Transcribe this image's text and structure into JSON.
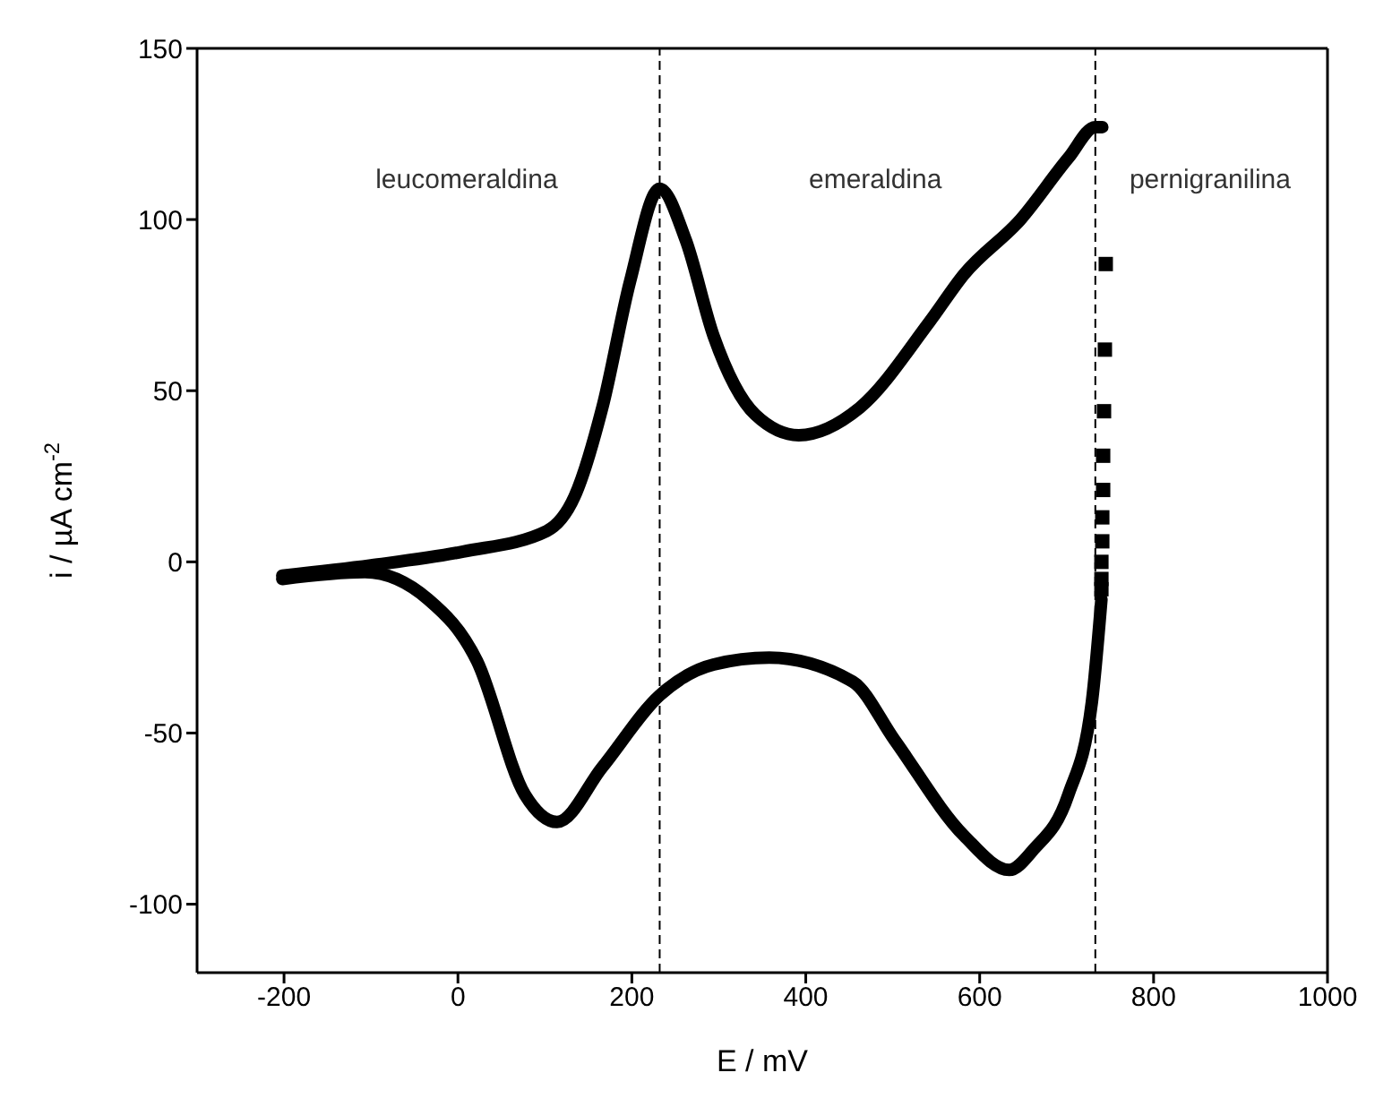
{
  "chart_data": {
    "type": "line",
    "xlabel": "E / mV",
    "ylabel": "i / µA cm$^{-2}$",
    "xlim": [
      -300,
      1000
    ],
    "xticks": [
      -200,
      0,
      200,
      400,
      600,
      800,
      1000
    ],
    "ylim": [
      -120,
      150
    ],
    "yticks": [
      -100,
      -50,
      0,
      50,
      100,
      150
    ],
    "line_style": "solid",
    "series": [
      {
        "color": "#000000",
        "marker": "none",
        "x": [
          -202,
          -100,
          6,
          102,
          134,
          166,
          198,
          232,
          262,
          294,
          342,
          392,
          462,
          542,
          582,
          647,
          702,
          733,
          741
        ],
        "values": [
          -4,
          -1,
          3,
          9,
          19,
          45,
          82,
          109,
          94,
          66,
          43,
          37,
          45,
          70,
          84,
          100,
          118,
          127,
          127
        ]
      },
      {
        "type": "scatter",
        "color": "#000000",
        "marker": "square",
        "x": [
          745,
          744,
          743,
          742,
          742,
          741,
          741,
          740,
          740,
          740
        ],
        "values": [
          87,
          62,
          44,
          31,
          21,
          13,
          6,
          0,
          -5,
          -8
        ]
      },
      {
        "color": "#000000",
        "marker": "none",
        "x": [
          740,
          729,
          702,
          662,
          634,
          582,
          502,
          454,
          358,
          294,
          232,
          166,
          114,
          77,
          22,
          -34,
          -107,
          -202
        ],
        "values": [
          -11,
          -41,
          -68,
          -84,
          -90,
          -80,
          -52,
          -35,
          -28,
          -30,
          -39,
          -60,
          -76,
          -68,
          -29,
          -11,
          -3,
          -5
        ]
      }
    ],
    "ref_lines": [
      {
        "axis": "x",
        "value": 232,
        "line_style": "dashed",
        "color": "#000000"
      },
      {
        "axis": "x",
        "value": 733,
        "line_style": "dashed",
        "color": "#000000"
      }
    ],
    "annotations": [
      "leucomeraldina",
      "emeraldina",
      "pernigranilina"
    ]
  }
}
